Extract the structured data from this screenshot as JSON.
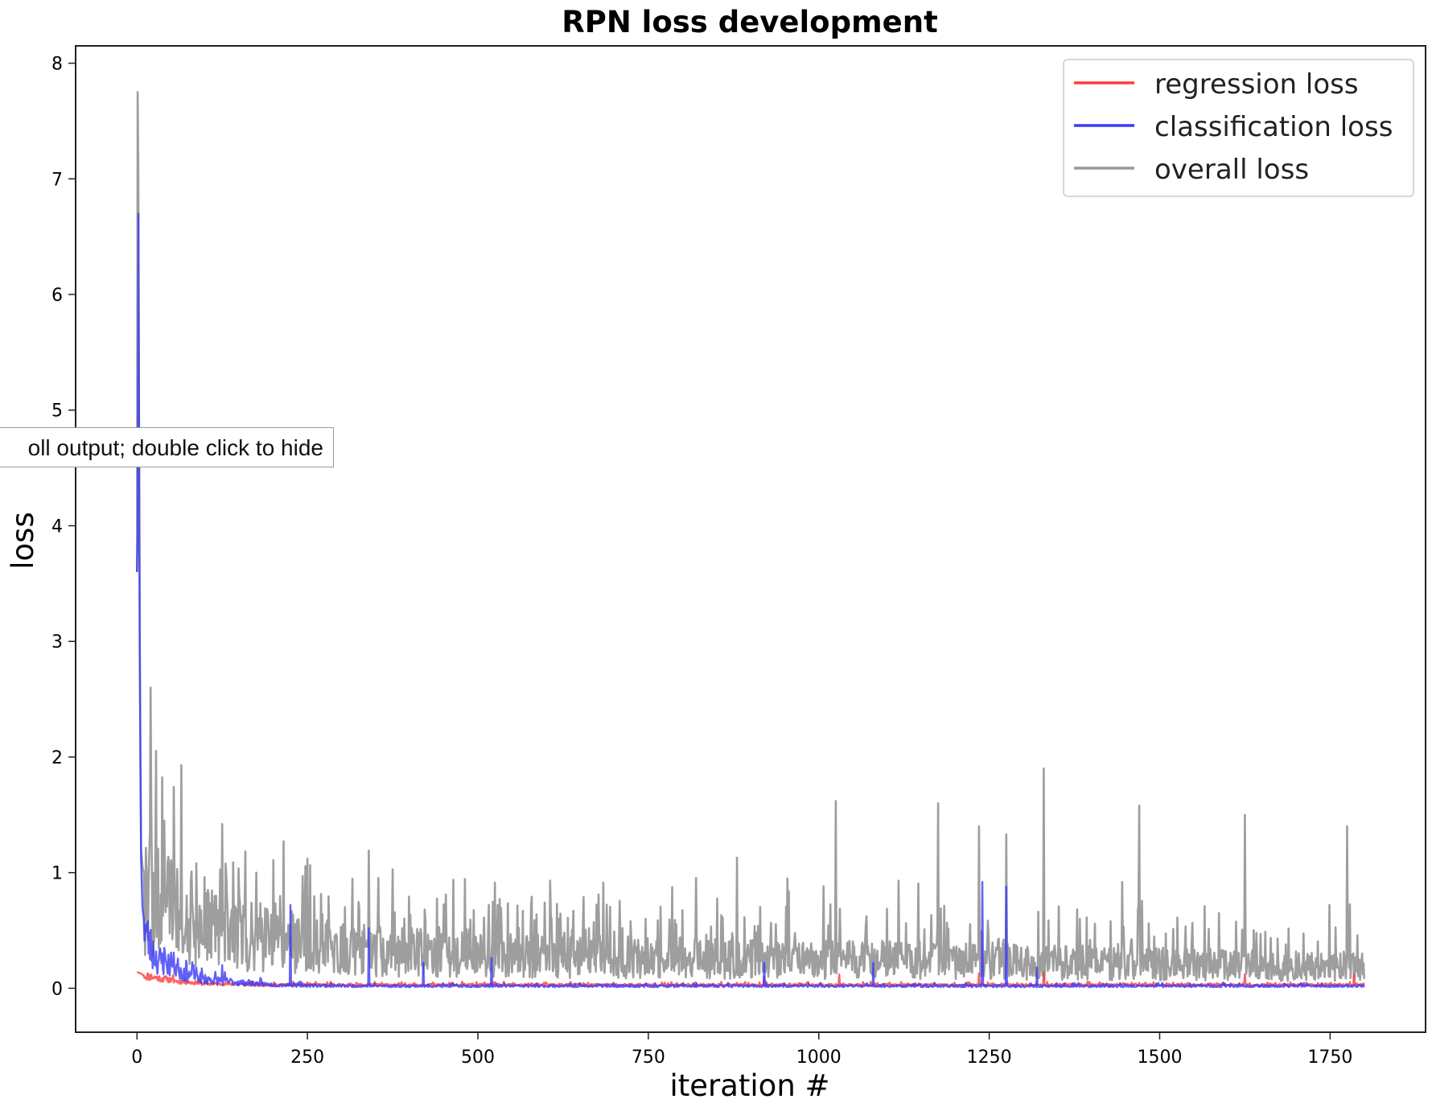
{
  "tooltip": {
    "text": "oll output; double click to hide"
  },
  "chart_data": {
    "type": "line",
    "title": "RPN loss development",
    "xlabel": "iteration #",
    "ylabel": "loss",
    "xlim": [
      -90,
      1890
    ],
    "ylim": [
      -0.38,
      8.15
    ],
    "xticks": [
      0,
      250,
      500,
      750,
      1000,
      1250,
      1500,
      1750
    ],
    "yticks": [
      0,
      1,
      2,
      3,
      4,
      5,
      6,
      7,
      8
    ],
    "grid": false,
    "legend_position": "top-right",
    "colors": {
      "regression": "#ff3b3b",
      "classification": "#3a3af5",
      "overall": "#999999",
      "axes": "#222222"
    },
    "series": [
      {
        "key": "regression",
        "name": "regression loss",
        "color": "#ff3b3b",
        "x": [
          0,
          5,
          10,
          20,
          40,
          60,
          80,
          100,
          150,
          200,
          300,
          500,
          750,
          1000,
          1250,
          1500,
          1750,
          1800
        ],
        "y": [
          0.14,
          0.13,
          0.11,
          0.1,
          0.08,
          0.06,
          0.05,
          0.04,
          0.035,
          0.03,
          0.03,
          0.03,
          0.03,
          0.03,
          0.03,
          0.03,
          0.03,
          0.03
        ],
        "spikes": [
          [
            920,
            0.1
          ],
          [
            1030,
            0.12
          ],
          [
            1235,
            0.13
          ],
          [
            1330,
            0.14
          ],
          [
            1625,
            0.12
          ],
          [
            1785,
            0.12
          ]
        ]
      },
      {
        "key": "classification",
        "name": "classification loss",
        "color": "#3a3af5",
        "x": [
          0,
          1,
          2,
          3,
          4,
          6,
          8,
          10,
          15,
          20,
          30,
          50,
          75,
          100,
          150,
          200,
          300,
          500,
          750,
          1000,
          1250,
          1500,
          1750,
          1800
        ],
        "y": [
          3.6,
          3.9,
          6.7,
          5.0,
          3.0,
          1.1,
          0.7,
          0.6,
          0.45,
          0.35,
          0.25,
          0.2,
          0.12,
          0.08,
          0.05,
          0.03,
          0.02,
          0.02,
          0.02,
          0.02,
          0.02,
          0.02,
          0.02,
          0.02
        ],
        "spikes": [
          [
            40,
            0.35
          ],
          [
            125,
            0.2
          ],
          [
            225,
            0.72
          ],
          [
            340,
            0.52
          ],
          [
            420,
            0.22
          ],
          [
            520,
            0.26
          ],
          [
            920,
            0.22
          ],
          [
            1080,
            0.22
          ],
          [
            1240,
            0.92
          ],
          [
            1275,
            0.88
          ],
          [
            1320,
            0.18
          ]
        ]
      },
      {
        "key": "overall",
        "name": "overall loss",
        "color": "#999999",
        "x": [
          0,
          1,
          2,
          3,
          4,
          5,
          6,
          8,
          10,
          15,
          20,
          30,
          50,
          75,
          100,
          150,
          200,
          300,
          400,
          500,
          750,
          1000,
          1250,
          1500,
          1750,
          1800
        ],
        "y": [
          3.6,
          7.75,
          7.0,
          5.0,
          3.0,
          2.0,
          1.2,
          1.05,
          1.0,
          0.9,
          0.85,
          0.75,
          0.7,
          0.6,
          0.55,
          0.5,
          0.45,
          0.35,
          0.33,
          0.3,
          0.28,
          0.26,
          0.25,
          0.22,
          0.2,
          0.2
        ],
        "spikes": [
          [
            20,
            2.6
          ],
          [
            40,
            1.45
          ],
          [
            65,
            1.93
          ],
          [
            125,
            1.42
          ],
          [
            175,
            1.0
          ],
          [
            215,
            1.27
          ],
          [
            250,
            1.12
          ],
          [
            340,
            1.19
          ],
          [
            880,
            1.13
          ],
          [
            1025,
            1.62
          ],
          [
            1175,
            1.6
          ],
          [
            1235,
            1.4
          ],
          [
            1275,
            1.33
          ],
          [
            1330,
            1.9
          ],
          [
            1470,
            1.58
          ],
          [
            1625,
            1.5
          ],
          [
            1775,
            1.4
          ]
        ]
      }
    ]
  }
}
